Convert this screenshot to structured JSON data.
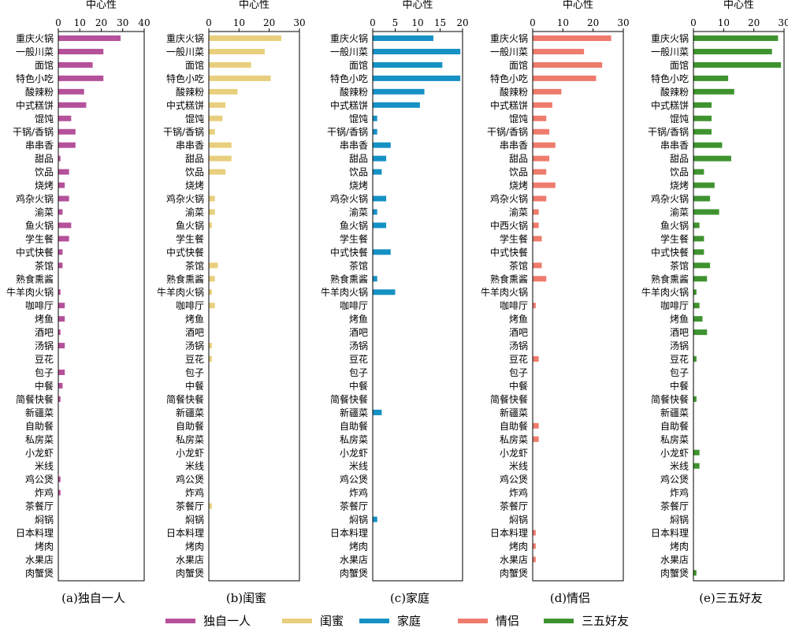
{
  "figure": {
    "legend": [
      {
        "name": "独自一人",
        "color": "#b5519a"
      },
      {
        "name": "闺蜜",
        "color": "#e8cf7d"
      },
      {
        "name": "家庭",
        "color": "#1591c4"
      },
      {
        "name": "情侣",
        "color": "#ee7b6c"
      },
      {
        "name": "三五好友",
        "color": "#3f932f"
      }
    ]
  },
  "chart_data": [
    {
      "type": "bar",
      "orientation": "horizontal",
      "xlabel": "中心性",
      "caption": "(a)独自一人",
      "color": "#b5519a",
      "xlim": [
        0,
        40
      ],
      "xticks": [
        0,
        10,
        20,
        30,
        40
      ],
      "categories": [
        "重庆火锅",
        "一般川菜",
        "面馆",
        "特色小吃",
        "酸辣粉",
        "中式糕饼",
        "馄饨",
        "干锅/香锅",
        "串串香",
        "甜品",
        "饮品",
        "烧烤",
        "鸡杂火锅",
        "渝菜",
        "鱼火锅",
        "学生餐",
        "中式快餐",
        "茶馆",
        "熟食熏酱",
        "牛羊肉火锅",
        "咖啡厅",
        "烤鱼",
        "酒吧",
        "汤锅",
        "豆花",
        "包子",
        "中餐",
        "简餐快餐",
        "新疆菜",
        "自助餐",
        "私房菜",
        "小龙虾",
        "米线",
        "鸡公煲",
        "炸鸡",
        "茶餐厅",
        "焖锅",
        "日本料理",
        "烤肉",
        "水果店",
        "肉蟹煲"
      ],
      "values": [
        29,
        21,
        16,
        21,
        12,
        13,
        6,
        8,
        8,
        1,
        5,
        3,
        5,
        2,
        6,
        5,
        2,
        2,
        0,
        1,
        3,
        3,
        1,
        3,
        0,
        3,
        2,
        1,
        0,
        0,
        0,
        0,
        0,
        1,
        1,
        0,
        0,
        0,
        0,
        0,
        0
      ]
    },
    {
      "type": "bar",
      "orientation": "horizontal",
      "xlabel": "中心性",
      "caption": "(b)闺蜜",
      "color": "#e8cf7d",
      "xlim": [
        0,
        30
      ],
      "xticks": [
        0,
        10,
        20,
        30
      ],
      "categories": [
        "重庆火锅",
        "一般川菜",
        "面馆",
        "特色小吃",
        "酸辣粉",
        "中式糕饼",
        "馄饨",
        "干锅/香锅",
        "串串香",
        "甜品",
        "饮品",
        "烧烤",
        "鸡杂火锅",
        "渝菜",
        "鱼火锅",
        "学生餐",
        "中式快餐",
        "茶馆",
        "熟食熏酱",
        "牛羊肉火锅",
        "咖啡厅",
        "烤鱼",
        "酒吧",
        "汤锅",
        "豆花",
        "包子",
        "中餐",
        "简餐快餐",
        "新疆菜",
        "自助餐",
        "私房菜",
        "小龙虾",
        "米线",
        "鸡公煲",
        "炸鸡",
        "茶餐厅",
        "焖锅",
        "日本料理",
        "烤肉",
        "水果店",
        "肉蟹煲"
      ],
      "values": [
        24,
        18.5,
        14,
        20.5,
        9.5,
        5.5,
        4.5,
        2,
        7.5,
        7.5,
        5.5,
        0,
        2,
        2,
        1,
        0,
        0,
        3,
        2,
        1,
        2,
        0,
        0,
        1,
        1,
        0,
        0,
        0,
        0,
        0,
        0,
        0,
        0,
        0,
        0,
        1,
        0,
        0,
        0,
        0,
        0
      ]
    },
    {
      "type": "bar",
      "orientation": "horizontal",
      "xlabel": "中心性",
      "caption": "(c)家庭",
      "color": "#1591c4",
      "xlim": [
        0,
        20
      ],
      "xticks": [
        0,
        5,
        10,
        15,
        20
      ],
      "categories": [
        "重庆火锅",
        "一般川菜",
        "面馆",
        "特色小吃",
        "酸辣粉",
        "中式糕饼",
        "馄饨",
        "干锅/香锅",
        "串串香",
        "甜品",
        "饮品",
        "烧烤",
        "鸡杂火锅",
        "渝菜",
        "鱼火锅",
        "学生餐",
        "中式快餐",
        "茶馆",
        "熟食熏酱",
        "牛羊肉火锅",
        "咖啡厅",
        "烤鱼",
        "酒吧",
        "汤锅",
        "豆花",
        "包子",
        "中餐",
        "简餐快餐",
        "新疆菜",
        "自助餐",
        "私房菜",
        "小龙虾",
        "米线",
        "鸡公煲",
        "炸鸡",
        "茶餐厅",
        "焖锅",
        "日本料理",
        "烤肉",
        "水果店",
        "肉蟹煲"
      ],
      "values": [
        13.5,
        19.5,
        15.5,
        19.5,
        11.5,
        10.5,
        1,
        1,
        4,
        3,
        2,
        0,
        3,
        1,
        3,
        0,
        4,
        0,
        1,
        5,
        0,
        0,
        0,
        0,
        0,
        0,
        0,
        0,
        2,
        0,
        0,
        0,
        0,
        0,
        0,
        0,
        1,
        0,
        0,
        0,
        0
      ]
    },
    {
      "type": "bar",
      "orientation": "horizontal",
      "xlabel": "中心性",
      "caption": "(d)情侣",
      "color": "#ee7b6c",
      "xlim": [
        0,
        30
      ],
      "xticks": [
        0,
        10,
        20,
        30
      ],
      "categories": [
        "重庆火锅",
        "一般川菜",
        "面馆",
        "特色小吃",
        "酸辣粉",
        "中式糕饼",
        "馄饨",
        "干锅/香锅",
        "串串香",
        "甜品",
        "饮品",
        "烧烤",
        "鸡杂火锅",
        "渝菜",
        "中西火锅",
        "学生餐",
        "中式快餐",
        "茶馆",
        "熟食熏酱",
        "牛羊肉火锅",
        "咖啡厅",
        "烤鱼",
        "酒吧",
        "汤锅",
        "豆花",
        "包子",
        "中餐",
        "简餐快餐",
        "新疆菜",
        "自助餐",
        "私房菜",
        "小龙虾",
        "米线",
        "鸡公煲",
        "炸鸡",
        "茶餐厅",
        "焖锅",
        "日本料理",
        "烤肉",
        "水果店",
        "肉蟹煲"
      ],
      "values": [
        26,
        17,
        23,
        21,
        9.5,
        6.5,
        4.5,
        5.5,
        7.5,
        5.5,
        4.5,
        7.5,
        4.5,
        2,
        2,
        3,
        0,
        3,
        4.5,
        0,
        1,
        0,
        0,
        0,
        2,
        0,
        0,
        0,
        0,
        2,
        2,
        0,
        0,
        0,
        0,
        0,
        0,
        1,
        1,
        1,
        0
      ]
    },
    {
      "type": "bar",
      "orientation": "horizontal",
      "xlabel": "中心性",
      "caption": "(e)三五好友",
      "color": "#3f932f",
      "xlim": [
        0,
        30
      ],
      "xticks": [
        0,
        10,
        20,
        30
      ],
      "categories": [
        "重庆火锅",
        "一般川菜",
        "面馆",
        "特色小吃",
        "酸辣粉",
        "中式糕饼",
        "馄饨",
        "干锅/香锅",
        "串串香",
        "甜品",
        "饮品",
        "烧烤",
        "鸡杂火锅",
        "渝菜",
        "鱼火锅",
        "学生餐",
        "中式快餐",
        "茶馆",
        "熟食熏酱",
        "牛羊肉火锅",
        "咖啡厅",
        "烤鱼",
        "酒吧",
        "汤锅",
        "豆花",
        "包子",
        "中餐",
        "简餐快餐",
        "新疆菜",
        "自助餐",
        "私房菜",
        "小龙虾",
        "米线",
        "鸡公煲",
        "炸鸡",
        "茶餐厅",
        "焖锅",
        "日本料理",
        "烤肉",
        "水果店",
        "肉蟹煲"
      ],
      "values": [
        28,
        26,
        29,
        11.5,
        13.5,
        6,
        6,
        6,
        9.5,
        12.5,
        3.5,
        7,
        5.5,
        8.5,
        2,
        3.5,
        3.5,
        5.5,
        4.5,
        1,
        2,
        3,
        4.5,
        0,
        1,
        0,
        0,
        1,
        0,
        0,
        0,
        2,
        2,
        0,
        0,
        0,
        0,
        0,
        0,
        0,
        1
      ]
    }
  ]
}
